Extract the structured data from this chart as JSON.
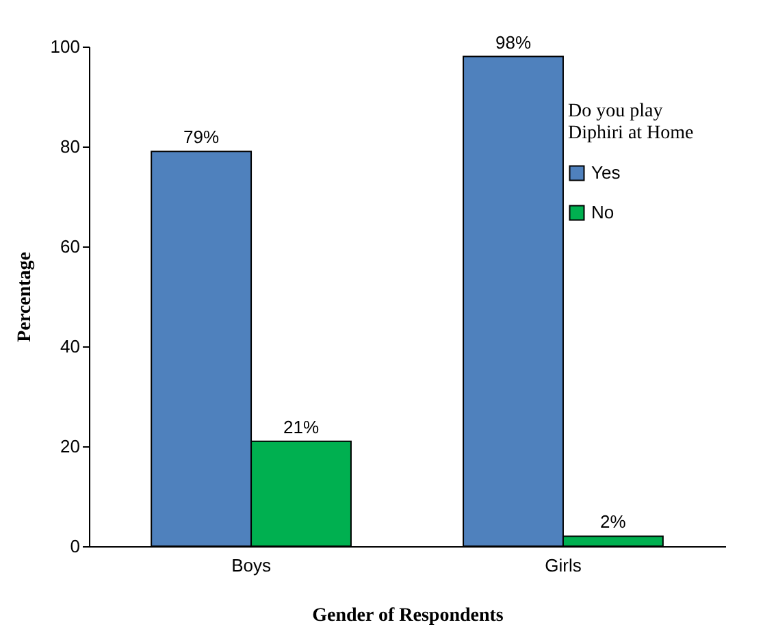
{
  "chart_data": {
    "type": "bar",
    "xlabel": "Gender of Respondents",
    "ylabel": "Percentage",
    "legend_title": "Do you play Diphiri at Home",
    "categories": [
      "Boys",
      "Girls"
    ],
    "series": [
      {
        "name": "Yes",
        "color": "#4f81bd",
        "values": [
          79,
          98
        ],
        "value_labels": [
          "79%",
          "98%"
        ]
      },
      {
        "name": "No",
        "color": "#00b050",
        "values": [
          21,
          2
        ],
        "value_labels": [
          "21%",
          "2%"
        ]
      }
    ],
    "ylim": [
      0,
      100
    ],
    "yticks": [
      0,
      20,
      40,
      60,
      80,
      100
    ],
    "grid": false,
    "legend": "top right"
  }
}
